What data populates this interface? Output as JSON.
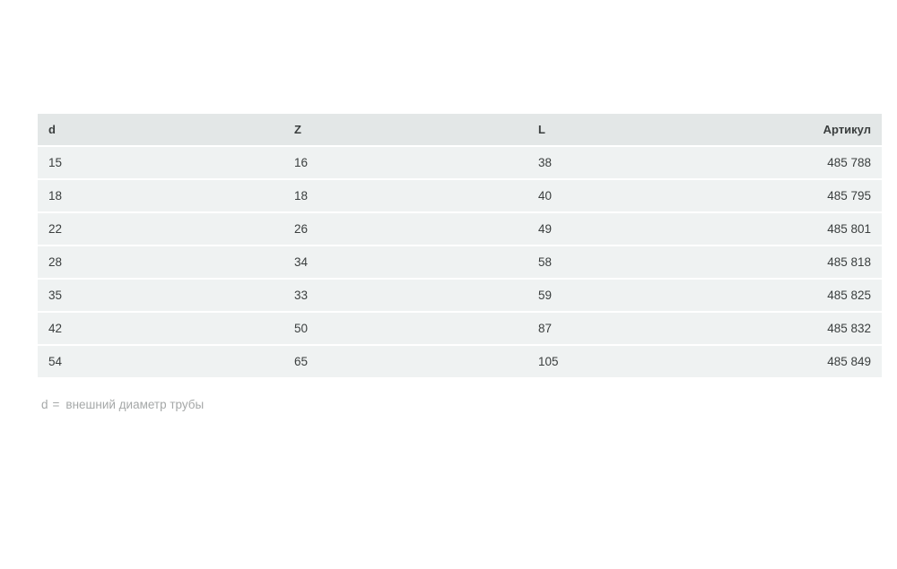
{
  "table": {
    "columns": [
      {
        "key": "d",
        "label": "d",
        "align": "left"
      },
      {
        "key": "z",
        "label": "Z",
        "align": "left"
      },
      {
        "key": "l",
        "label": "L",
        "align": "left"
      },
      {
        "key": "article",
        "label": "Артикул",
        "align": "right"
      }
    ],
    "rows": [
      {
        "d": "15",
        "z": "16",
        "l": "38",
        "article": "485 788"
      },
      {
        "d": "18",
        "z": "18",
        "l": "40",
        "article": "485 795"
      },
      {
        "d": "22",
        "z": "26",
        "l": "49",
        "article": "485 801"
      },
      {
        "d": "28",
        "z": "34",
        "l": "58",
        "article": "485 818"
      },
      {
        "d": "35",
        "z": "33",
        "l": "59",
        "article": "485 825"
      },
      {
        "d": "42",
        "z": "50",
        "l": "87",
        "article": "485 832"
      },
      {
        "d": "54",
        "z": "65",
        "l": "105",
        "article": "485 849"
      }
    ]
  },
  "footnote": {
    "term": "d",
    "equals": "=",
    "text": "внешний диаметр трубы"
  },
  "colors": {
    "header_bg": "#e3e7e7",
    "row_bg": "#eff2f2",
    "text": "#3a3e3e",
    "footnote_text": "#a5a8a8",
    "page_bg": "#ffffff"
  }
}
